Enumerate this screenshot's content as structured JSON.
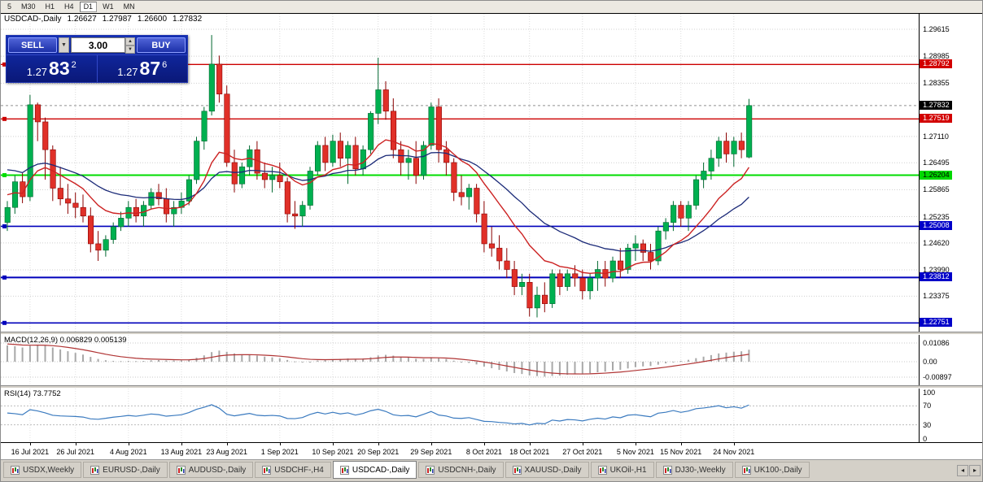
{
  "toolbar": {
    "periods": [
      {
        "label": "5",
        "active": false
      },
      {
        "label": "M30",
        "active": false
      },
      {
        "label": "H1",
        "active": false
      },
      {
        "label": "H4",
        "active": false
      },
      {
        "label": "D1",
        "active": true
      },
      {
        "label": "W1",
        "active": false
      },
      {
        "label": "MN",
        "active": false
      }
    ]
  },
  "chart": {
    "symbol_period": "USDCAD-,Daily",
    "open": "1.26627",
    "high": "1.27987",
    "low": "1.26600",
    "close": "1.27832",
    "trade_panel": {
      "sell_label": "SELL",
      "buy_label": "BUY",
      "volume": "3.00",
      "sell_price_main": "1.27",
      "sell_price_pips": "83",
      "sell_price_sup": "2",
      "buy_price_main": "1.27",
      "buy_price_pips": "87",
      "buy_price_sup": "6"
    },
    "axis_ticks": [
      "1.29615",
      "1.28985",
      "1.28355",
      "1.27110",
      "1.26495",
      "1.25865",
      "1.25235",
      "1.24620",
      "1.23990",
      "1.23375"
    ],
    "price_badges": [
      {
        "text": "1.28792",
        "bg": "#d20000",
        "fg": "#ffffff",
        "price": 1.28792
      },
      {
        "text": "1.27832",
        "bg": "#000000",
        "fg": "#ffffff",
        "price": 1.27832
      },
      {
        "text": "1.27519",
        "bg": "#d20000",
        "fg": "#ffffff",
        "price": 1.27519
      },
      {
        "text": "1.26204",
        "bg": "#00d800",
        "fg": "#000000",
        "price": 1.26204
      },
      {
        "text": "1.25008",
        "bg": "#0000c8",
        "fg": "#ffffff",
        "price": 1.25008
      },
      {
        "text": "1.23812",
        "bg": "#0000c8",
        "fg": "#ffffff",
        "price": 1.23812
      },
      {
        "text": "1.22751",
        "bg": "#0000c8",
        "fg": "#ffffff",
        "price": 1.22751
      }
    ],
    "levels": [
      {
        "price": 1.28792,
        "color": "#cc0000",
        "width": 1.3
      },
      {
        "price": 1.27519,
        "color": "#cc0000",
        "width": 1.3
      },
      {
        "price": 1.26204,
        "color": "#00dd00",
        "width": 2
      },
      {
        "price": 1.25008,
        "color": "#0000bb",
        "width": 1.6
      },
      {
        "price": 1.23812,
        "color": "#0000bb",
        "width": 2
      },
      {
        "price": 1.22751,
        "color": "#0000bb",
        "width": 1.6
      }
    ],
    "current_price": 1.27832
  },
  "chart_data": {
    "type": "candlestick",
    "title": "USDCAD-,Daily",
    "symbol": "USDCAD",
    "period": "Daily",
    "y_range": [
      1.2255,
      1.2998
    ],
    "y_ticks": [
      1.29615,
      1.28985,
      1.28355,
      1.2711,
      1.26495,
      1.25865,
      1.25235,
      1.2462,
      1.2399,
      1.23375
    ],
    "x_labels": [
      {
        "i": 3,
        "label": "16 Jul 2021"
      },
      {
        "i": 9,
        "label": "26 Jul 2021"
      },
      {
        "i": 16,
        "label": "4 Aug 2021"
      },
      {
        "i": 23,
        "label": "13 Aug 2021"
      },
      {
        "i": 29,
        "label": "23 Aug 2021"
      },
      {
        "i": 36,
        "label": "1 Sep 2021"
      },
      {
        "i": 43,
        "label": "10 Sep 2021"
      },
      {
        "i": 49,
        "label": "20 Sep 2021"
      },
      {
        "i": 56,
        "label": "29 Sep 2021"
      },
      {
        "i": 63,
        "label": "8 Oct 2021"
      },
      {
        "i": 69,
        "label": "18 Oct 2021"
      },
      {
        "i": 76,
        "label": "27 Oct 2021"
      },
      {
        "i": 83,
        "label": "5 Nov 2021"
      },
      {
        "i": 89,
        "label": "15 Nov 2021"
      },
      {
        "i": 96,
        "label": "24 Nov 2021"
      }
    ],
    "candles": [
      [
        1.251,
        1.256,
        1.249,
        1.2545
      ],
      [
        1.2545,
        1.262,
        1.253,
        1.2605
      ],
      [
        1.2605,
        1.2625,
        1.2555,
        1.257
      ],
      [
        1.257,
        1.2808,
        1.256,
        1.2785
      ],
      [
        1.2785,
        1.279,
        1.27,
        1.2745
      ],
      [
        1.2745,
        1.2755,
        1.261,
        1.268
      ],
      [
        1.268,
        1.269,
        1.256,
        1.259
      ],
      [
        1.259,
        1.264,
        1.255,
        1.2565
      ],
      [
        1.2565,
        1.26,
        1.253,
        1.2555
      ],
      [
        1.2555,
        1.258,
        1.252,
        1.2545
      ],
      [
        1.2545,
        1.2575,
        1.251,
        1.2525
      ],
      [
        1.2525,
        1.2545,
        1.244,
        1.246
      ],
      [
        1.246,
        1.249,
        1.242,
        1.2445
      ],
      [
        1.2445,
        1.248,
        1.243,
        1.247
      ],
      [
        1.247,
        1.251,
        1.246,
        1.25
      ],
      [
        1.25,
        1.2535,
        1.249,
        1.252
      ],
      [
        1.252,
        1.256,
        1.25,
        1.2545
      ],
      [
        1.2545,
        1.2565,
        1.251,
        1.2525
      ],
      [
        1.2525,
        1.256,
        1.25,
        1.255
      ],
      [
        1.255,
        1.259,
        1.254,
        1.258
      ],
      [
        1.258,
        1.26,
        1.255,
        1.2565
      ],
      [
        1.2565,
        1.259,
        1.251,
        1.253
      ],
      [
        1.253,
        1.256,
        1.25,
        1.2545
      ],
      [
        1.2545,
        1.258,
        1.253,
        1.256
      ],
      [
        1.256,
        1.262,
        1.255,
        1.261
      ],
      [
        1.261,
        1.271,
        1.26,
        1.27
      ],
      [
        1.27,
        1.278,
        1.268,
        1.277
      ],
      [
        1.277,
        1.2948,
        1.276,
        1.288
      ],
      [
        1.288,
        1.29,
        1.279,
        1.281
      ],
      [
        1.281,
        1.283,
        1.264,
        1.265
      ],
      [
        1.265,
        1.268,
        1.258,
        1.26
      ],
      [
        1.26,
        1.265,
        1.259,
        1.264
      ],
      [
        1.264,
        1.269,
        1.262,
        1.268
      ],
      [
        1.268,
        1.27,
        1.261,
        1.2625
      ],
      [
        1.2625,
        1.265,
        1.259,
        1.261
      ],
      [
        1.261,
        1.264,
        1.258,
        1.262
      ],
      [
        1.262,
        1.265,
        1.259,
        1.2605
      ],
      [
        1.2605,
        1.2615,
        1.251,
        1.253
      ],
      [
        1.253,
        1.256,
        1.2495,
        1.2525
      ],
      [
        1.2525,
        1.256,
        1.25,
        1.255
      ],
      [
        1.255,
        1.264,
        1.254,
        1.263
      ],
      [
        1.263,
        1.27,
        1.262,
        1.269
      ],
      [
        1.269,
        1.271,
        1.263,
        1.265
      ],
      [
        1.265,
        1.2715,
        1.264,
        1.27
      ],
      [
        1.27,
        1.272,
        1.264,
        1.266
      ],
      [
        1.266,
        1.27,
        1.26,
        1.269
      ],
      [
        1.269,
        1.271,
        1.262,
        1.2635
      ],
      [
        1.2635,
        1.269,
        1.262,
        1.268
      ],
      [
        1.268,
        1.277,
        1.267,
        1.2765
      ],
      [
        1.2765,
        1.2895,
        1.274,
        1.282
      ],
      [
        1.282,
        1.284,
        1.275,
        1.277
      ],
      [
        1.277,
        1.28,
        1.266,
        1.268
      ],
      [
        1.268,
        1.27,
        1.262,
        1.265
      ],
      [
        1.265,
        1.268,
        1.261,
        1.266
      ],
      [
        1.266,
        1.27,
        1.26,
        1.262
      ],
      [
        1.262,
        1.27,
        1.261,
        1.269
      ],
      [
        1.269,
        1.279,
        1.268,
        1.278
      ],
      [
        1.278,
        1.28,
        1.265,
        1.268
      ],
      [
        1.268,
        1.27,
        1.262,
        1.265
      ],
      [
        1.265,
        1.266,
        1.256,
        1.258
      ],
      [
        1.258,
        1.262,
        1.255,
        1.257
      ],
      [
        1.257,
        1.26,
        1.254,
        1.259
      ],
      [
        1.259,
        1.26,
        1.251,
        1.253
      ],
      [
        1.253,
        1.256,
        1.244,
        1.246
      ],
      [
        1.246,
        1.25,
        1.243,
        1.245
      ],
      [
        1.245,
        1.248,
        1.24,
        1.242
      ],
      [
        1.242,
        1.245,
        1.238,
        1.24
      ],
      [
        1.24,
        1.242,
        1.234,
        1.236
      ],
      [
        1.236,
        1.239,
        1.234,
        1.237
      ],
      [
        1.237,
        1.239,
        1.229,
        1.231
      ],
      [
        1.231,
        1.236,
        1.2288,
        1.234
      ],
      [
        1.234,
        1.237,
        1.23,
        1.232
      ],
      [
        1.232,
        1.24,
        1.231,
        1.239
      ],
      [
        1.239,
        1.24,
        1.234,
        1.236
      ],
      [
        1.236,
        1.24,
        1.235,
        1.239
      ],
      [
        1.239,
        1.241,
        1.236,
        1.238
      ],
      [
        1.238,
        1.24,
        1.233,
        1.235
      ],
      [
        1.235,
        1.239,
        1.233,
        1.238
      ],
      [
        1.238,
        1.242,
        1.235,
        1.24
      ],
      [
        1.24,
        1.242,
        1.236,
        1.238
      ],
      [
        1.238,
        1.243,
        1.237,
        1.242
      ],
      [
        1.242,
        1.245,
        1.238,
        1.24
      ],
      [
        1.24,
        1.246,
        1.239,
        1.245
      ],
      [
        1.245,
        1.248,
        1.242,
        1.246
      ],
      [
        1.246,
        1.247,
        1.242,
        1.244
      ],
      [
        1.244,
        1.246,
        1.24,
        1.242
      ],
      [
        1.242,
        1.25,
        1.241,
        1.249
      ],
      [
        1.249,
        1.252,
        1.247,
        1.251
      ],
      [
        1.251,
        1.256,
        1.249,
        1.255
      ],
      [
        1.255,
        1.256,
        1.25,
        1.252
      ],
      [
        1.252,
        1.256,
        1.249,
        1.255
      ],
      [
        1.255,
        1.262,
        1.254,
        1.261
      ],
      [
        1.261,
        1.265,
        1.259,
        1.263
      ],
      [
        1.263,
        1.268,
        1.261,
        1.266
      ],
      [
        1.266,
        1.271,
        1.264,
        1.27
      ],
      [
        1.27,
        1.272,
        1.265,
        1.267
      ],
      [
        1.267,
        1.271,
        1.264,
        1.27
      ],
      [
        1.27,
        1.272,
        1.266,
        1.268
      ],
      [
        1.26627,
        1.27987,
        1.266,
        1.27832
      ]
    ],
    "indicators": {
      "macd": {
        "label": "MACD(12,26,9) 0.006829 0.005139",
        "value": "0.006829",
        "signal": "0.005139",
        "axis": [
          "0.01086",
          "0.00",
          "-0.00897"
        ],
        "params": [
          12,
          26,
          9
        ]
      },
      "rsi": {
        "label": "RSI(14) 73.7752",
        "value": "73.7752",
        "period": 14,
        "axis": [
          "100",
          "70",
          "30",
          "0"
        ],
        "levels": [
          70,
          30
        ]
      }
    },
    "colors": {
      "up": "#00b050",
      "up_stroke": "#006830",
      "down": "#e03028",
      "down_stroke": "#8a0000",
      "ma_fast": "#cc2222",
      "ma_slow": "#1b2a78",
      "macd_hist": "#a8a8a8",
      "macd_signal": "#b03434",
      "rsi_line": "#3a7abf"
    }
  },
  "tabs": {
    "items": [
      {
        "label": "USDX,Weekly",
        "active": false
      },
      {
        "label": "EURUSD-,Daily",
        "active": false
      },
      {
        "label": "AUDUSD-,Daily",
        "active": false
      },
      {
        "label": "USDCHF-,H4",
        "active": false
      },
      {
        "label": "USDCAD-,Daily",
        "active": true
      },
      {
        "label": "USDCNH-,Daily",
        "active": false
      },
      {
        "label": "XAUUSD-,Daily",
        "active": false
      },
      {
        "label": "UKOil-,H1",
        "active": false
      },
      {
        "label": "DJ30-,Weekly",
        "active": false
      },
      {
        "label": "UK100-,Daily",
        "active": false
      }
    ],
    "scroll_left": "◂",
    "scroll_right": "▸"
  }
}
